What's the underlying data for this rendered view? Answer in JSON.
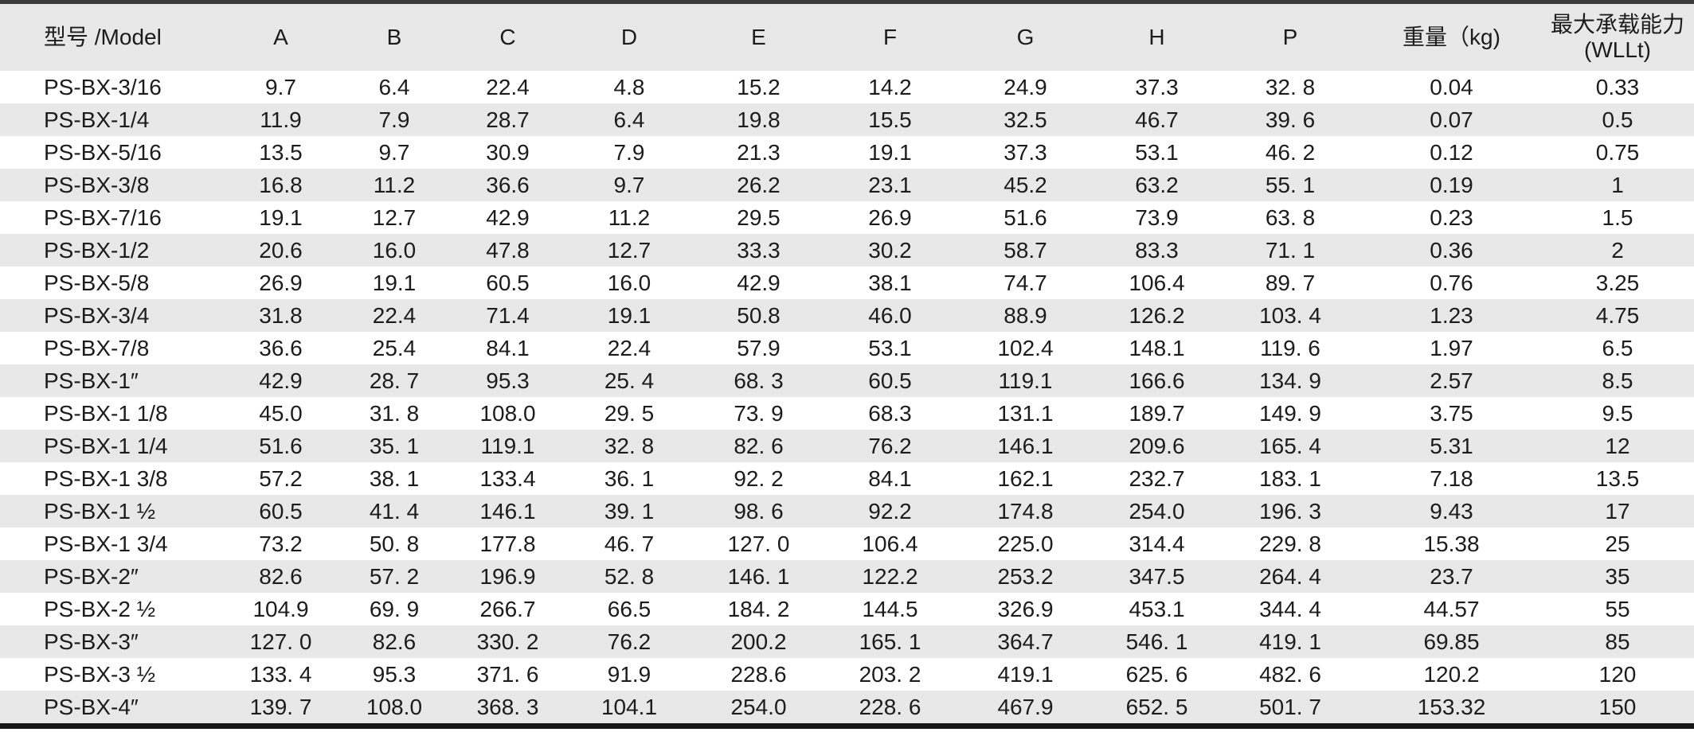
{
  "colors": {
    "stripe_and_header_bg": "#e8e8e8",
    "row_bg": "#ffffff",
    "text": "#1c1c1c",
    "top_border": "#3b3b3b",
    "bottom_border": "#171717"
  },
  "chart_data": {
    "type": "table",
    "title": "",
    "columns": [
      {
        "key": "model",
        "label": "型号 /Model"
      },
      {
        "key": "a",
        "label": "A"
      },
      {
        "key": "b",
        "label": "B"
      },
      {
        "key": "c",
        "label": "C"
      },
      {
        "key": "d",
        "label": "D"
      },
      {
        "key": "e",
        "label": "E"
      },
      {
        "key": "f",
        "label": "F"
      },
      {
        "key": "g",
        "label": "G"
      },
      {
        "key": "h",
        "label": "H"
      },
      {
        "key": "p",
        "label": "P"
      },
      {
        "key": "weight",
        "label": "重量（kg)"
      },
      {
        "key": "wll",
        "label": "最大承载能力",
        "label2": "(WLLt)"
      }
    ],
    "rows": [
      [
        "PS-BX-3/16",
        "9.7",
        "6.4",
        "22.4",
        "4.8",
        "15.2",
        "14.2",
        "24.9",
        "37.3",
        "32. 8",
        "0.04",
        "0.33"
      ],
      [
        "PS-BX-1/4",
        "11.9",
        "7.9",
        "28.7",
        "6.4",
        "19.8",
        "15.5",
        "32.5",
        "46.7",
        "39. 6",
        "0.07",
        "0.5"
      ],
      [
        "PS-BX-5/16",
        "13.5",
        "9.7",
        "30.9",
        "7.9",
        "21.3",
        "19.1",
        "37.3",
        "53.1",
        "46. 2",
        "0.12",
        "0.75"
      ],
      [
        "PS-BX-3/8",
        "16.8",
        "11.2",
        "36.6",
        "9.7",
        "26.2",
        "23.1",
        "45.2",
        "63.2",
        "55. 1",
        "0.19",
        "1"
      ],
      [
        "PS-BX-7/16",
        "19.1",
        "12.7",
        "42.9",
        "11.2",
        "29.5",
        "26.9",
        "51.6",
        "73.9",
        "63. 8",
        "0.23",
        "1.5"
      ],
      [
        "PS-BX-1/2",
        "20.6",
        "16.0",
        "47.8",
        "12.7",
        "33.3",
        "30.2",
        "58.7",
        "83.3",
        "71. 1",
        "0.36",
        "2"
      ],
      [
        "PS-BX-5/8",
        "26.9",
        "19.1",
        "60.5",
        "16.0",
        "42.9",
        "38.1",
        "74.7",
        "106.4",
        "89. 7",
        "0.76",
        "3.25"
      ],
      [
        "PS-BX-3/4",
        "31.8",
        "22.4",
        "71.4",
        "19.1",
        "50.8",
        "46.0",
        "88.9",
        "126.2",
        "103. 4",
        "1.23",
        "4.75"
      ],
      [
        "PS-BX-7/8",
        "36.6",
        "25.4",
        "84.1",
        "22.4",
        "57.9",
        "53.1",
        "102.4",
        "148.1",
        "119. 6",
        "1.97",
        "6.5"
      ],
      [
        "PS-BX-1″",
        "42.9",
        "28. 7",
        "95.3",
        "25. 4",
        "68. 3",
        "60.5",
        "119.1",
        "166.6",
        "134. 9",
        "2.57",
        "8.5"
      ],
      [
        "PS-BX-1 1/8",
        "45.0",
        "31. 8",
        "108.0",
        "29. 5",
        "73. 9",
        "68.3",
        "131.1",
        "189.7",
        "149. 9",
        "3.75",
        "9.5"
      ],
      [
        "PS-BX-1 1/4",
        "51.6",
        "35. 1",
        "119.1",
        "32. 8",
        "82. 6",
        "76.2",
        "146.1",
        "209.6",
        "165. 4",
        "5.31",
        "12"
      ],
      [
        "PS-BX-1 3/8",
        "57.2",
        "38. 1",
        "133.4",
        "36. 1",
        "92. 2",
        "84.1",
        "162.1",
        "232.7",
        "183. 1",
        "7.18",
        "13.5"
      ],
      [
        "PS-BX-1 ½",
        "60.5",
        "41. 4",
        "146.1",
        "39. 1",
        "98. 6",
        "92.2",
        "174.8",
        "254.0",
        "196. 3",
        "9.43",
        "17"
      ],
      [
        "PS-BX-1 3/4",
        "73.2",
        "50. 8",
        "177.8",
        "46. 7",
        "127. 0",
        "106.4",
        "225.0",
        "314.4",
        "229. 8",
        "15.38",
        "25"
      ],
      [
        "PS-BX-2″",
        "82.6",
        "57. 2",
        "196.9",
        "52. 8",
        "146. 1",
        "122.2",
        "253.2",
        "347.5",
        "264. 4",
        "23.7",
        "35"
      ],
      [
        "PS-BX-2 ½",
        "104.9",
        "69. 9",
        "266.7",
        "66.5",
        "184. 2",
        "144.5",
        "326.9",
        "453.1",
        "344. 4",
        "44.57",
        "55"
      ],
      [
        "PS-BX-3″",
        "127. 0",
        "82.6",
        "330. 2",
        "76.2",
        "200.2",
        "165. 1",
        "364.7",
        "546. 1",
        "419. 1",
        "69.85",
        "85"
      ],
      [
        "PS-BX-3 ½",
        "133. 4",
        "95.3",
        "371. 6",
        "91.9",
        "228.6",
        "203. 2",
        "419.1",
        "625. 6",
        "482. 6",
        "120.2",
        "120"
      ],
      [
        "PS-BX-4″",
        "139. 7",
        "108.0",
        "368. 3",
        "104.1",
        "254.0",
        "228. 6",
        "467.9",
        "652. 5",
        "501. 7",
        "153.32",
        "150"
      ]
    ]
  }
}
